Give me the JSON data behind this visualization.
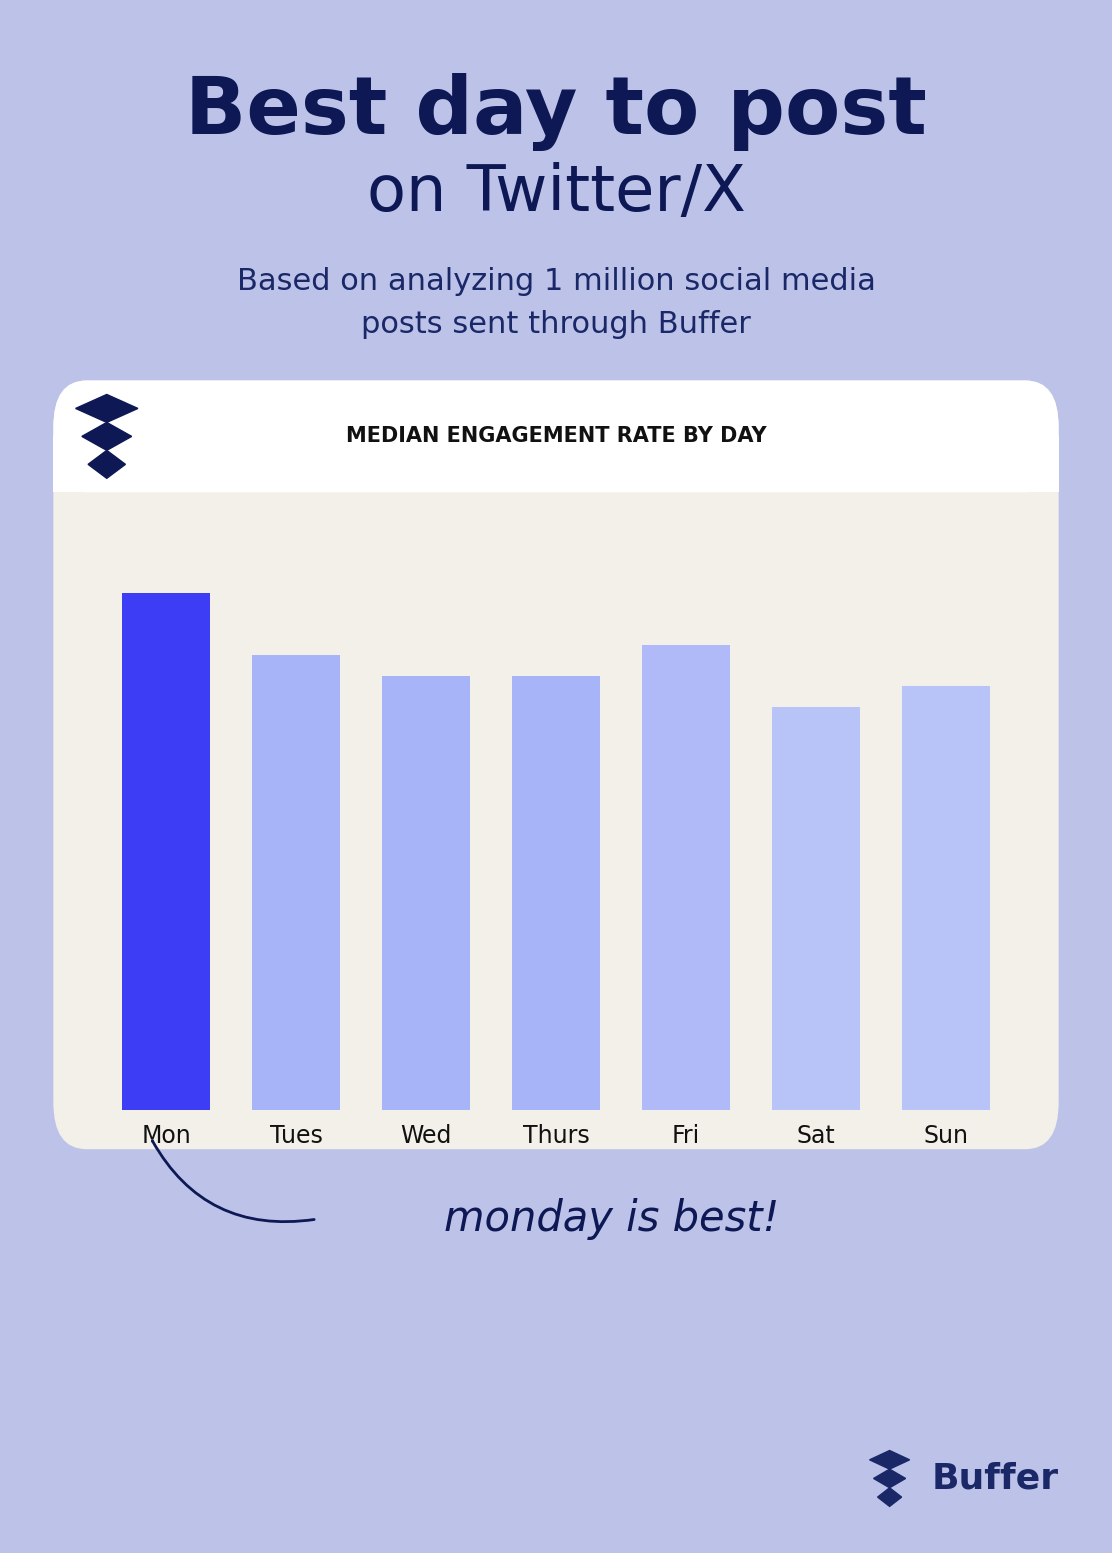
{
  "title_line1": "Best day to post",
  "title_line2": "on Twitter/X",
  "subtitle": "Based on analyzing 1 million social media\nposts sent through Buffer",
  "chart_title": "MEDIAN ENGAGEMENT RATE BY DAY",
  "categories": [
    "Mon",
    "Tues",
    "Wed",
    "Thurs",
    "Fri",
    "Sat",
    "Sun"
  ],
  "values": [
    100,
    88,
    84,
    84,
    90,
    78,
    82
  ],
  "bar_colors": [
    "#3d3df5",
    "#a8b4f8",
    "#a8b4f8",
    "#a8b4f8",
    "#b0baf8",
    "#b8c4f8",
    "#b8c4f8"
  ],
  "background_color": "#bdc3e8",
  "card_color": "#f2f0e8",
  "card_header_color": "#ffffff",
  "title_color": "#0d1854",
  "subtitle_color": "#1a2868",
  "chart_title_color": "#111111",
  "tick_color": "#111111",
  "annotation_text": "monday is best!",
  "annotation_color": "#0d1854",
  "buffer_text": "Buffer",
  "buffer_color": "#1a2868"
}
